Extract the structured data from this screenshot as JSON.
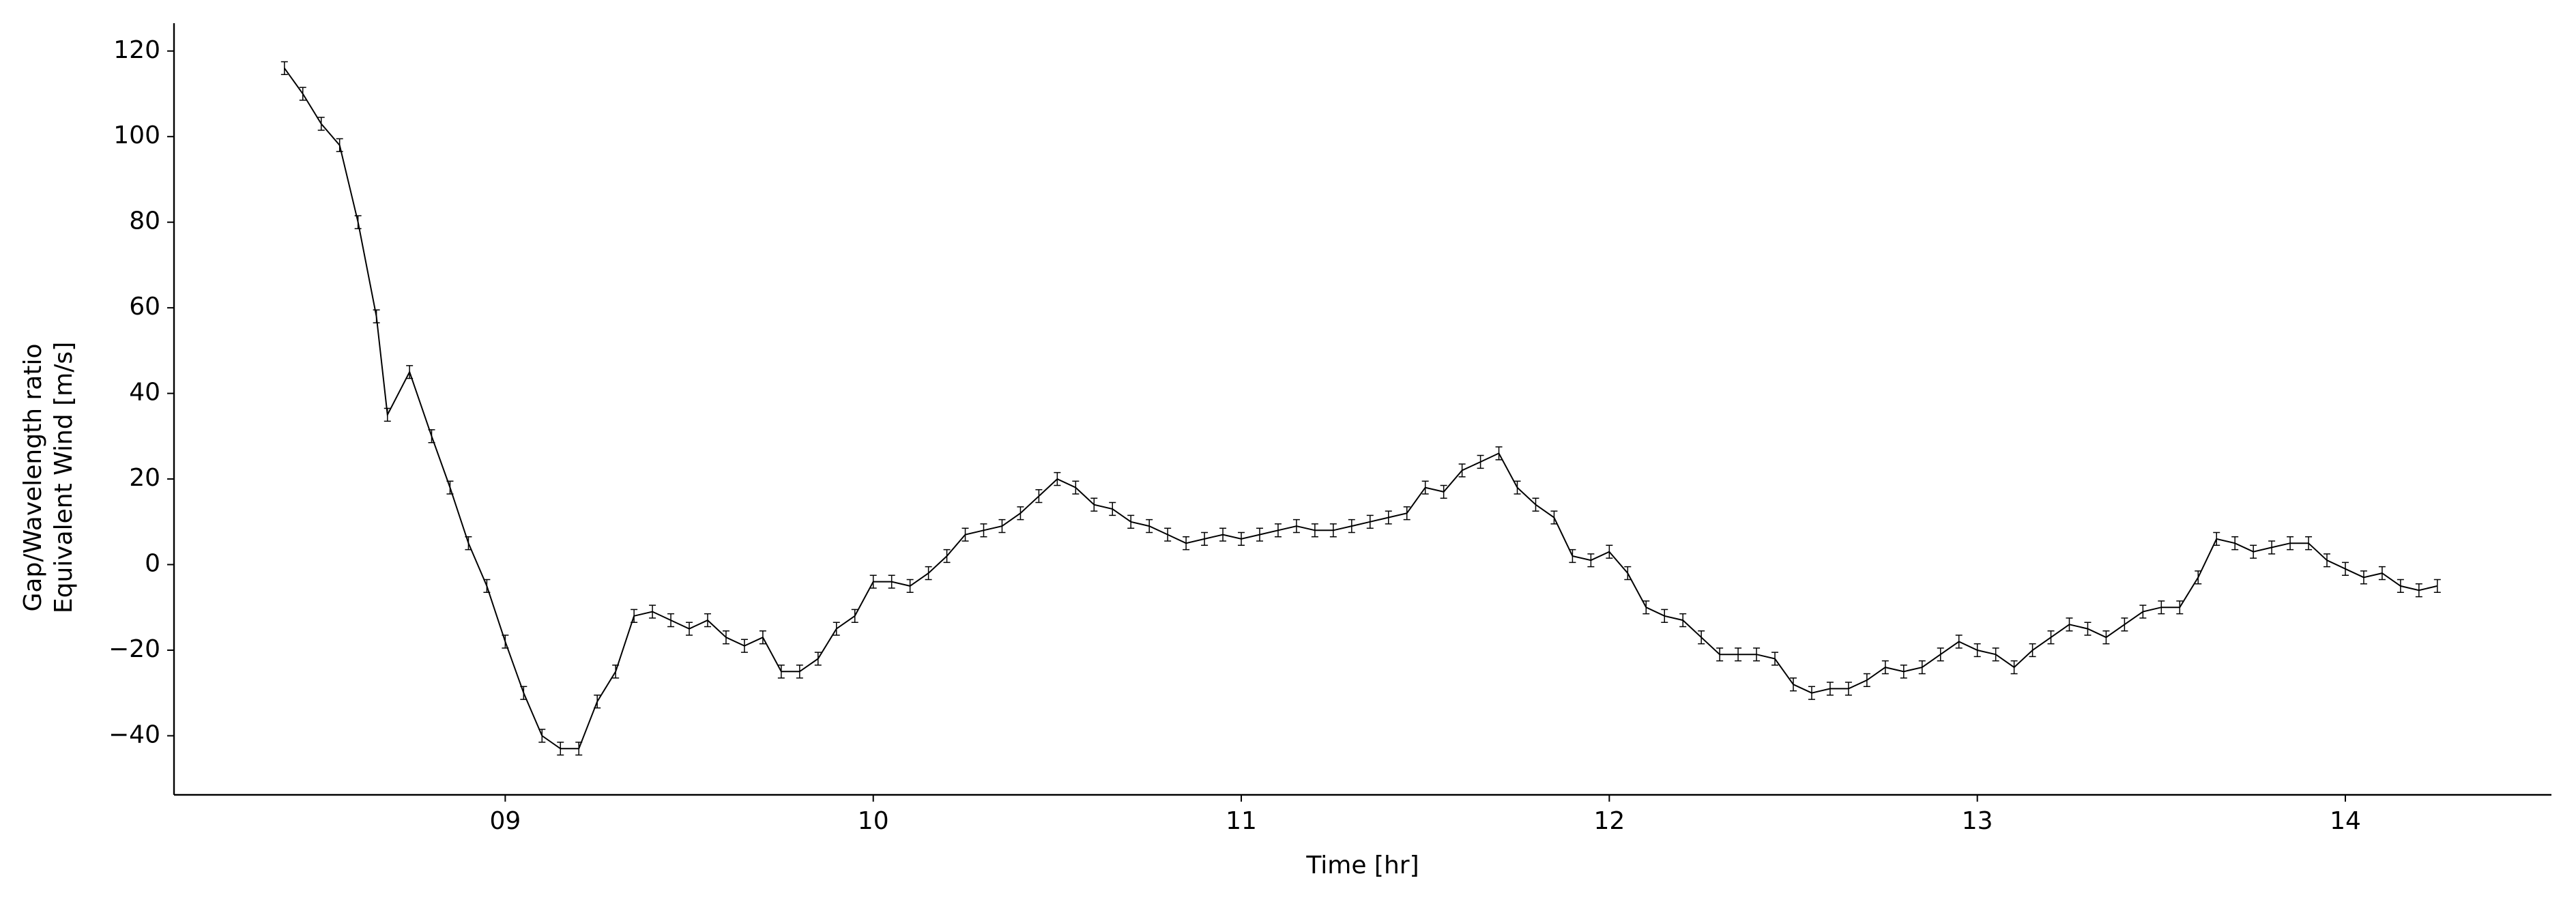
{
  "chart_data": {
    "type": "line",
    "xlabel": "Time [hr]",
    "ylabel": [
      "Gap/Wavelength ratio",
      "Equivalent Wind [m/s]"
    ],
    "x": [
      8.4,
      8.45,
      8.5,
      8.55,
      8.6,
      8.65,
      8.68,
      8.74,
      8.8,
      8.85,
      8.9,
      8.95,
      9.0,
      9.05,
      9.1,
      9.15,
      9.2,
      9.25,
      9.3,
      9.35,
      9.4,
      9.45,
      9.5,
      9.55,
      9.6,
      9.65,
      9.7,
      9.75,
      9.8,
      9.85,
      9.9,
      9.95,
      10.0,
      10.05,
      10.1,
      10.15,
      10.2,
      10.25,
      10.3,
      10.35,
      10.4,
      10.45,
      10.5,
      10.55,
      10.6,
      10.65,
      10.7,
      10.75,
      10.8,
      10.85,
      10.9,
      10.95,
      11.0,
      11.05,
      11.1,
      11.15,
      11.2,
      11.25,
      11.3,
      11.35,
      11.4,
      11.45,
      11.5,
      11.55,
      11.6,
      11.65,
      11.7,
      11.75,
      11.8,
      11.85,
      11.9,
      11.95,
      12.0,
      12.05,
      12.1,
      12.15,
      12.2,
      12.25,
      12.3,
      12.35,
      12.4,
      12.45,
      12.5,
      12.55,
      12.6,
      12.65,
      12.7,
      12.75,
      12.8,
      12.85,
      12.9,
      12.95,
      13.0,
      13.05,
      13.1,
      13.15,
      13.2,
      13.25,
      13.3,
      13.35,
      13.4,
      13.45,
      13.5,
      13.55,
      13.6,
      13.65,
      13.7,
      13.75,
      13.8,
      13.85,
      13.9,
      13.95,
      14.0,
      14.05,
      14.1,
      14.15,
      14.2,
      14.25
    ],
    "series": [
      {
        "color": "#000000",
        "values": [
          116,
          110,
          103,
          98,
          80,
          58,
          35,
          45,
          30,
          18,
          5,
          -5,
          -18,
          -30,
          -40,
          -43,
          -43,
          -32,
          -25,
          -12,
          -11,
          -13,
          -15,
          -13,
          -17,
          -19,
          -17,
          -25,
          -25,
          -22,
          -15,
          -12,
          -4,
          -4,
          -5,
          -2,
          2,
          7,
          8,
          9,
          12,
          16,
          20,
          18,
          14,
          13,
          10,
          9,
          7,
          5,
          6,
          7,
          6,
          7,
          8,
          9,
          8,
          8,
          9,
          10,
          11,
          12,
          18,
          17,
          22,
          24,
          26,
          18,
          14,
          11,
          2,
          1,
          3,
          -2,
          -10,
          -12,
          -13,
          -17,
          -21,
          -21,
          -21,
          -22,
          -28,
          -30,
          -29,
          -29,
          -27,
          -24,
          -25,
          -24,
          -21,
          -18,
          -20,
          -21,
          -24,
          -20,
          -17,
          -14,
          -15,
          -17,
          -14,
          -11,
          -10,
          -10,
          -3,
          6,
          5,
          3,
          4,
          5,
          5,
          1,
          -1,
          -3,
          -2,
          -5,
          -6,
          -5
        ]
      }
    ],
    "error": 1.5,
    "xlim": [
      8.1,
      14.56
    ],
    "ylim": [
      -53.8,
      126.5
    ],
    "xticks": [
      {
        "value": 9,
        "label": "09"
      },
      10,
      11,
      12,
      13,
      14
    ],
    "yticks": [
      {
        "value": -40,
        "label": "−40"
      },
      {
        "value": -20,
        "label": "−20"
      },
      0,
      20,
      40,
      60,
      80,
      100,
      120
    ],
    "grid": false
  }
}
